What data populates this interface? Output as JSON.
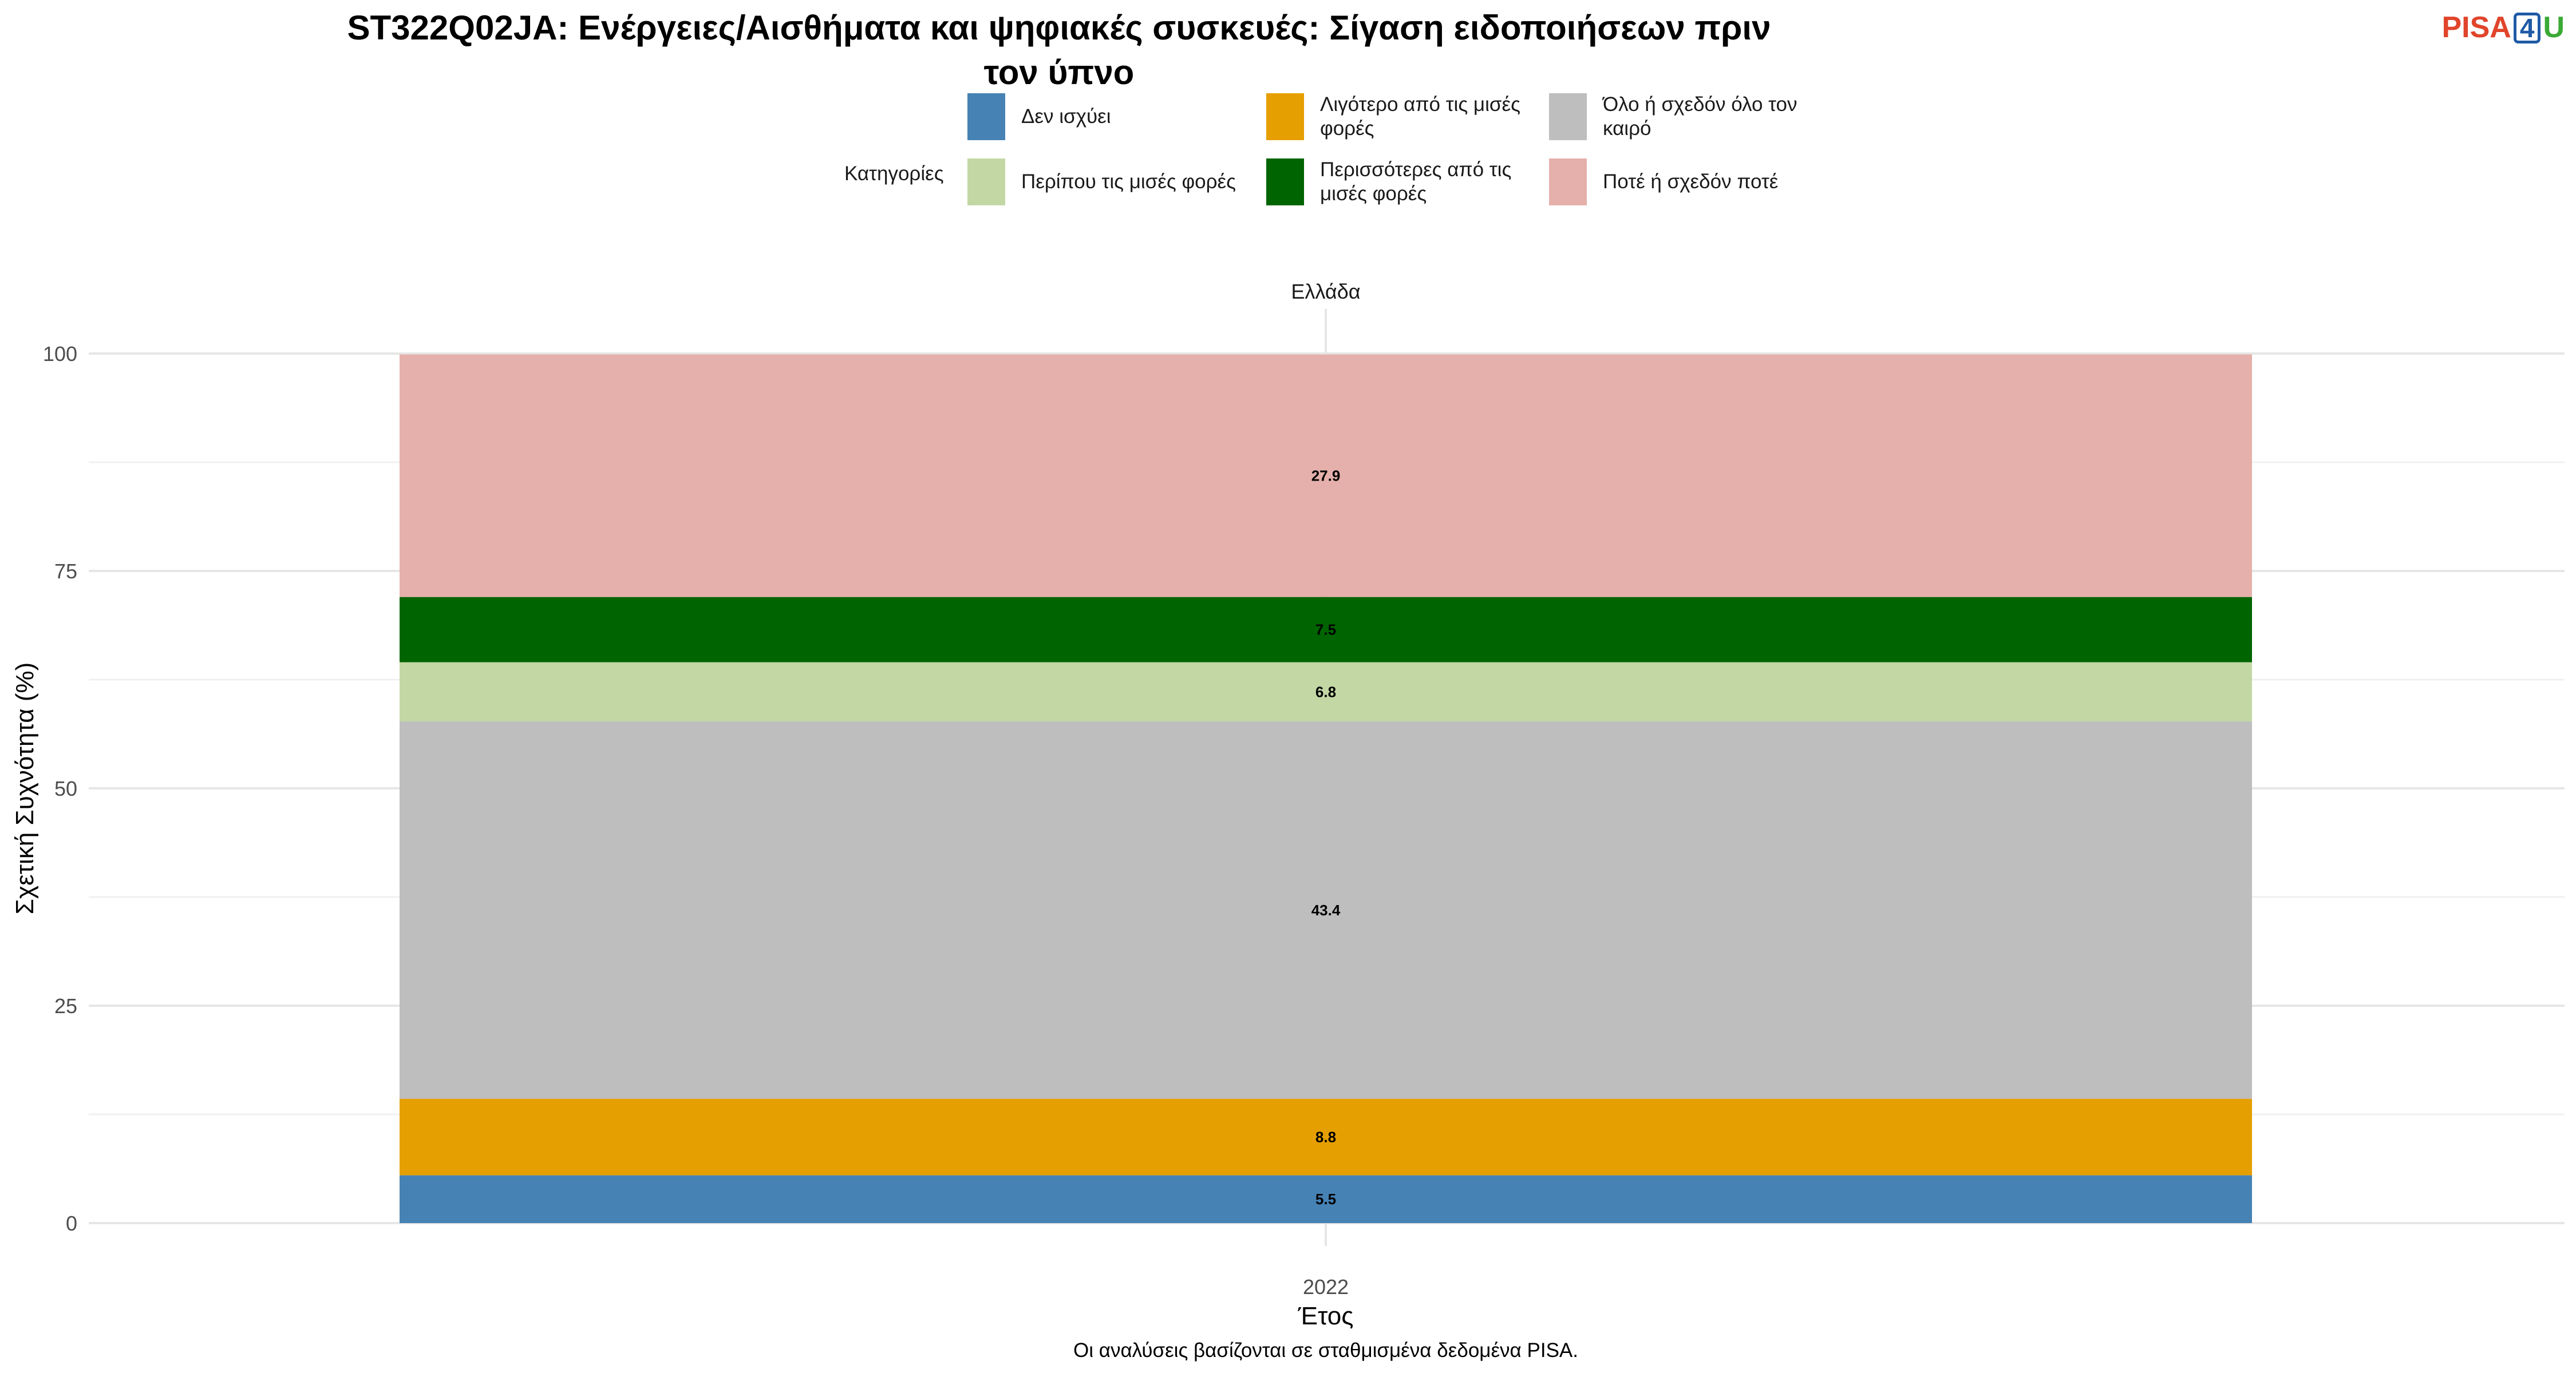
{
  "title": {
    "line1": "ST322Q02JA: Ενέργειες/Αισθήματα και ψηφιακές συσκευές: Σίγαση ειδοποιήσεων πριν",
    "line2": "τον ύπνο"
  },
  "logo": {
    "part1": "PISA",
    "part2": "4",
    "part3": "U"
  },
  "legend": {
    "title": "Κατηγορίες",
    "items": [
      {
        "lines": [
          "Δεν ισχύει"
        ],
        "color": "#4682B4"
      },
      {
        "lines": [
          "Περίπου τις μισές φορές"
        ],
        "color": "#C3D7A4"
      },
      {
        "lines": [
          "Λιγότερο από τις μισές",
          "φορές"
        ],
        "color": "#E59F00"
      },
      {
        "lines": [
          "Περισσότερες από τις",
          "μισές φορές"
        ],
        "color": "#006400"
      },
      {
        "lines": [
          "Όλο ή σχεδόν όλο τον",
          "καιρό"
        ],
        "color": "#BEBEBE"
      },
      {
        "lines": [
          "Ποτέ ή σχεδόν ποτέ"
        ],
        "color": "#E5B0AB"
      }
    ]
  },
  "facet_label": "Ελλάδα",
  "caption": "Οι αναλύσεις βασίζονται σε σταθμισμένα δεδομένα PISA.",
  "chart_data": {
    "type": "bar",
    "stacked": true,
    "categories": [
      "2022"
    ],
    "xlabel": "Έτος",
    "ylabel": "Σχετική Συχνότητα (%)",
    "ylim": [
      0,
      100
    ],
    "yticks": [
      0,
      25,
      50,
      75,
      100
    ],
    "grid": true,
    "legend_position": "top",
    "series": [
      {
        "name": "Δεν ισχύει",
        "values": [
          5.5
        ],
        "color": "#4682B4"
      },
      {
        "name": "Λιγότερο από τις μισές φορές",
        "values": [
          8.8
        ],
        "color": "#E59F00"
      },
      {
        "name": "Όλο ή σχεδόν όλο τον καιρό",
        "values": [
          43.4
        ],
        "color": "#BEBEBE"
      },
      {
        "name": "Περίπου τις μισές φορές",
        "values": [
          6.8
        ],
        "color": "#C3D7A4"
      },
      {
        "name": "Περισσότερες από τις μισές φορές",
        "values": [
          7.5
        ],
        "color": "#006400"
      },
      {
        "name": "Ποτέ ή σχεδόν ποτέ",
        "values": [
          27.9
        ],
        "color": "#E5B0AB"
      }
    ]
  }
}
